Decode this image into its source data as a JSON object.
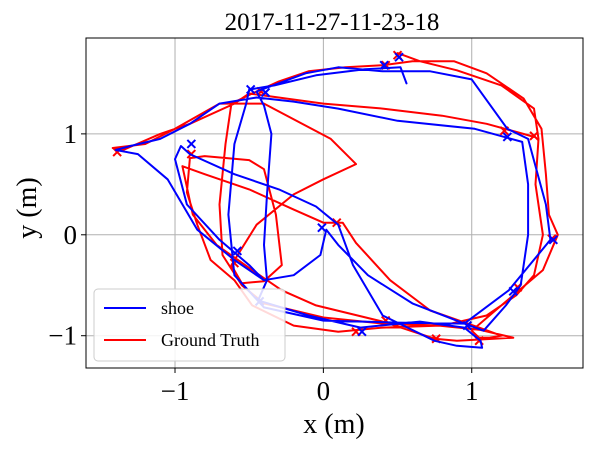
{
  "chart_data": {
    "type": "line",
    "title": "2017-11-27-11-23-18",
    "xlabel": "x (m)",
    "ylabel": "y (m)",
    "xlim": [
      -1.6,
      1.75
    ],
    "ylim": [
      -1.32,
      1.95
    ],
    "xticks": [
      {
        "value": -1,
        "label": "−1"
      },
      {
        "value": 0,
        "label": "0"
      },
      {
        "value": 1,
        "label": "1"
      }
    ],
    "yticks": [
      {
        "value": -1,
        "label": "−1"
      },
      {
        "value": 0,
        "label": "0"
      },
      {
        "value": 1,
        "label": "1"
      }
    ],
    "grid": true,
    "legend": {
      "placement": "lower-left"
    },
    "series": [
      {
        "name": "shoe",
        "color": "#0000ff",
        "points": [
          [
            0.56,
            1.5
          ],
          [
            0.52,
            1.66
          ],
          [
            0.28,
            1.64
          ],
          [
            -0.05,
            1.58
          ],
          [
            -0.33,
            1.48
          ],
          [
            -0.5,
            1.44
          ],
          [
            -0.52,
            1.3
          ],
          [
            -0.6,
            0.9
          ],
          [
            -0.64,
            0.2
          ],
          [
            -0.6,
            -0.4
          ],
          [
            -0.4,
            -0.72
          ],
          [
            0.0,
            -0.85
          ],
          [
            0.5,
            -0.87
          ],
          [
            0.95,
            -0.88
          ],
          [
            1.08,
            -0.95
          ],
          [
            1.23,
            -0.7
          ],
          [
            1.33,
            -0.5
          ],
          [
            1.38,
            0.0
          ],
          [
            1.38,
            0.5
          ],
          [
            1.34,
            0.92
          ],
          [
            1.02,
            1.05
          ],
          [
            0.5,
            1.13
          ],
          [
            0.1,
            1.25
          ],
          [
            -0.2,
            1.32
          ],
          [
            -0.45,
            1.36
          ],
          [
            -0.7,
            1.3
          ],
          [
            -0.9,
            1.1
          ],
          [
            -1.1,
            0.95
          ],
          [
            -1.3,
            0.88
          ],
          [
            -1.4,
            0.84
          ],
          [
            -1.25,
            0.8
          ],
          [
            -1.05,
            0.55
          ],
          [
            -0.85,
            0.05
          ],
          [
            -0.6,
            -0.25
          ],
          [
            -0.4,
            -0.45
          ],
          [
            -0.2,
            -0.4
          ],
          [
            -0.02,
            -0.2
          ],
          [
            0.02,
            0.05
          ],
          [
            0.1,
            -0.1
          ],
          [
            0.3,
            -0.4
          ],
          [
            0.6,
            -0.68
          ],
          [
            0.95,
            -0.88
          ],
          [
            1.25,
            -0.55
          ],
          [
            1.53,
            -0.05
          ],
          [
            1.5,
            0.3
          ],
          [
            1.38,
            0.95
          ],
          [
            1.24,
            1.05
          ],
          [
            1.0,
            1.54
          ],
          [
            0.72,
            1.62
          ],
          [
            0.4,
            1.62
          ],
          [
            0.1,
            1.66
          ],
          [
            -0.12,
            1.6
          ],
          [
            -0.45,
            1.42
          ],
          [
            -0.4,
            1.28
          ],
          [
            -0.35,
            1.0
          ],
          [
            -0.38,
            0.4
          ],
          [
            -0.4,
            -0.1
          ],
          [
            -0.38,
            -0.45
          ],
          [
            -0.44,
            -0.65
          ],
          [
            -0.1,
            -0.8
          ],
          [
            0.25,
            -0.92
          ],
          [
            0.65,
            -0.86
          ],
          [
            0.95,
            -0.92
          ],
          [
            1.06,
            -1.05
          ],
          [
            1.07,
            -1.12
          ],
          [
            0.9,
            -1.1
          ],
          [
            0.75,
            -1.05
          ],
          [
            0.4,
            -0.8
          ],
          [
            0.2,
            -0.3
          ],
          [
            0.1,
            0.1
          ],
          [
            -0.05,
            0.28
          ],
          [
            -0.3,
            0.45
          ],
          [
            -0.6,
            0.6
          ],
          [
            -0.9,
            0.8
          ],
          [
            -0.96,
            0.88
          ],
          [
            -1.0,
            0.75
          ],
          [
            -0.92,
            0.3
          ],
          [
            -0.7,
            -0.05
          ],
          [
            -0.5,
            -0.3
          ],
          [
            -0.4,
            -0.45
          ]
        ],
        "markers": [
          [
            0.51,
            1.76
          ],
          [
            0.41,
            1.68
          ],
          [
            -0.49,
            1.44
          ],
          [
            -0.39,
            1.41
          ],
          [
            1.24,
            0.97
          ],
          [
            -0.89,
            0.9
          ],
          [
            -0.58,
            -0.16
          ],
          [
            -0.01,
            0.07
          ],
          [
            -0.43,
            -0.66
          ],
          [
            0.26,
            -0.96
          ],
          [
            0.97,
            -0.9
          ],
          [
            1.28,
            -0.56
          ],
          [
            1.55,
            -0.05
          ]
        ]
      },
      {
        "name": "Ground Truth",
        "color": "#ff0000",
        "points": [
          [
            0.5,
            1.8
          ],
          [
            0.65,
            1.72
          ],
          [
            0.9,
            1.63
          ],
          [
            1.2,
            1.48
          ],
          [
            1.42,
            1.25
          ],
          [
            1.45,
            0.95
          ],
          [
            1.43,
            0.5
          ],
          [
            1.48,
            0.0
          ],
          [
            1.42,
            -0.4
          ],
          [
            1.3,
            -0.6
          ],
          [
            1.1,
            -0.8
          ],
          [
            0.8,
            -0.9
          ],
          [
            0.4,
            -0.88
          ],
          [
            0.0,
            -0.82
          ],
          [
            -0.4,
            -0.68
          ],
          [
            -0.55,
            -0.5
          ],
          [
            -0.68,
            -0.2
          ],
          [
            -0.7,
            0.3
          ],
          [
            -0.66,
            0.9
          ],
          [
            -0.62,
            1.3
          ],
          [
            -0.48,
            1.4
          ],
          [
            -0.3,
            1.52
          ],
          [
            -0.1,
            1.62
          ],
          [
            0.15,
            1.66
          ],
          [
            0.4,
            1.68
          ],
          [
            0.6,
            1.72
          ],
          [
            0.88,
            1.72
          ],
          [
            1.1,
            1.6
          ],
          [
            1.35,
            1.35
          ],
          [
            1.47,
            1.05
          ],
          [
            1.5,
            0.6
          ],
          [
            1.52,
            0.2
          ],
          [
            1.58,
            0.0
          ],
          [
            1.48,
            -0.35
          ],
          [
            1.28,
            -0.6
          ],
          [
            1.12,
            -0.8
          ],
          [
            1.0,
            -0.95
          ],
          [
            1.05,
            -1.02
          ],
          [
            1.12,
            -1.02
          ],
          [
            1.2,
            -1.0
          ],
          [
            1.05,
            -0.92
          ],
          [
            0.72,
            -0.75
          ],
          [
            0.45,
            -0.45
          ],
          [
            0.22,
            -0.08
          ],
          [
            0.13,
            0.12
          ],
          [
            0.0,
            0.12
          ],
          [
            -0.2,
            0.25
          ],
          [
            -0.5,
            0.45
          ],
          [
            -0.8,
            0.6
          ],
          [
            -0.95,
            0.68
          ],
          [
            -0.88,
            0.2
          ],
          [
            -0.72,
            -0.1
          ],
          [
            -0.48,
            -0.35
          ],
          [
            -0.28,
            -0.55
          ],
          [
            -0.05,
            -0.7
          ],
          [
            0.4,
            -0.86
          ],
          [
            0.75,
            -1.03
          ],
          [
            0.9,
            -1.05
          ],
          [
            1.15,
            -1.03
          ],
          [
            1.28,
            -1.02
          ],
          [
            1.05,
            -0.94
          ],
          [
            0.78,
            -0.9
          ],
          [
            0.4,
            -0.92
          ],
          [
            0.1,
            -0.96
          ],
          [
            -0.2,
            -0.9
          ],
          [
            -0.48,
            -0.7
          ],
          [
            -0.6,
            -0.45
          ],
          [
            -0.76,
            -0.25
          ],
          [
            -0.85,
            0.1
          ],
          [
            -0.92,
            0.42
          ],
          [
            -0.9,
            0.76
          ],
          [
            -0.8,
            0.78
          ],
          [
            -0.5,
            0.74
          ],
          [
            -0.4,
            0.65
          ],
          [
            -0.32,
            0.2
          ],
          [
            -0.28,
            -0.3
          ],
          [
            -0.4,
            -0.46
          ],
          [
            -0.55,
            -0.48
          ],
          [
            -0.62,
            -0.3
          ],
          [
            -0.45,
            0.1
          ],
          [
            -0.2,
            0.4
          ],
          [
            0.0,
            0.55
          ],
          [
            0.22,
            0.7
          ],
          [
            0.05,
            0.95
          ],
          [
            -0.4,
            1.3
          ],
          [
            -0.7,
            1.3
          ],
          [
            -1.0,
            1.05
          ],
          [
            -1.2,
            0.9
          ],
          [
            -1.42,
            0.86
          ],
          [
            -1.35,
            0.84
          ],
          [
            -1.1,
            1.0
          ],
          [
            -0.9,
            1.1
          ],
          [
            -0.6,
            1.3
          ],
          [
            -0.5,
            1.4
          ],
          [
            -0.4,
            1.38
          ],
          [
            0.0,
            1.3
          ],
          [
            0.4,
            1.25
          ],
          [
            0.8,
            1.18
          ],
          [
            1.1,
            1.1
          ],
          [
            1.3,
            1.02
          ],
          [
            1.42,
            0.97
          ]
        ],
        "markers": [
          [
            0.5,
            1.78
          ],
          [
            0.42,
            1.68
          ],
          [
            -0.42,
            1.42
          ],
          [
            1.22,
            1.03
          ],
          [
            1.42,
            0.98
          ],
          [
            -1.39,
            0.82
          ],
          [
            -0.89,
            0.8
          ],
          [
            -0.6,
            -0.28
          ],
          [
            0.09,
            0.12
          ],
          [
            0.42,
            -0.85
          ],
          [
            0.22,
            -0.96
          ],
          [
            0.76,
            -1.03
          ],
          [
            1.05,
            -1.05
          ],
          [
            1.31,
            -0.52
          ],
          [
            1.54,
            -0.04
          ]
        ]
      }
    ]
  }
}
